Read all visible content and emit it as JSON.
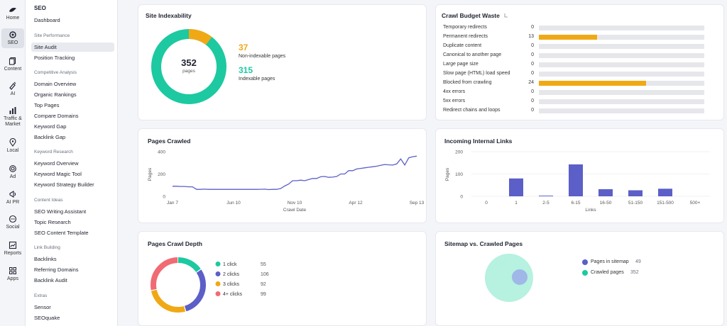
{
  "rail": [
    {
      "label": "Home",
      "icon": "home-icon"
    },
    {
      "label": "SEO",
      "icon": "seo-icon"
    },
    {
      "label": "Content",
      "icon": "content-icon"
    },
    {
      "label": "AI",
      "icon": "ai-icon"
    },
    {
      "label": "Traffic & Market",
      "icon": "traffic-icon"
    },
    {
      "label": "Local",
      "icon": "local-pin-icon"
    },
    {
      "label": "Ad",
      "icon": "ad-icon"
    },
    {
      "label": "AI PR",
      "icon": "ai-pr-icon"
    },
    {
      "label": "Social",
      "icon": "social-icon"
    },
    {
      "label": "Reports",
      "icon": "reports-icon"
    },
    {
      "label": "Apps",
      "icon": "apps-icon"
    }
  ],
  "sidebar": {
    "title": "SEO",
    "dashboard": "Dashboard",
    "sections": [
      {
        "heading": "Site Performance",
        "items": [
          "Site Audit",
          "Position Tracking"
        ]
      },
      {
        "heading": "Competitive Analysis",
        "items": [
          "Domain Overview",
          "Organic Rankings",
          "Top Pages",
          "Compare Domains",
          "Keyword Gap",
          "Backlink Gap"
        ]
      },
      {
        "heading": "Keyword Research",
        "items": [
          "Keyword Overview",
          "Keyword Magic Tool",
          "Keyword Strategy Builder"
        ]
      },
      {
        "heading": "Content Ideas",
        "items": [
          "SEO Writing Assistant",
          "Topic Research",
          "SEO Content Template"
        ]
      },
      {
        "heading": "Link Building",
        "items": [
          "Backlinks",
          "Referring Domains",
          "Backlink Audit"
        ]
      },
      {
        "heading": "Extras",
        "items": [
          "Sensor",
          "SEOquake"
        ]
      }
    ],
    "active_item": "Site Audit"
  },
  "indexability": {
    "title": "Site Indexability",
    "total": "352",
    "total_label": "pages",
    "non_indexable": "37",
    "non_indexable_label": "Non-indexable pages",
    "indexable": "315",
    "indexable_label": "Indexable pages",
    "colors": {
      "indexable": "#1dc9a0",
      "non_indexable": "#f0a915"
    }
  },
  "crawl_budget": {
    "title": "Crawl Budget Waste",
    "info_icon": "info-icon",
    "max": 37,
    "rows": [
      {
        "label": "Temporary redirects",
        "value": 0
      },
      {
        "label": "Permanent redirects",
        "value": 13
      },
      {
        "label": "Duplicate content",
        "value": 0
      },
      {
        "label": "Canonical to another page",
        "value": 0
      },
      {
        "label": "Large page size",
        "value": 0
      },
      {
        "label": "Slow page (HTML) load speed",
        "value": 0
      },
      {
        "label": "Blocked from crawling",
        "value": 24
      },
      {
        "label": "4xx errors",
        "value": 0
      },
      {
        "label": "5xx errors",
        "value": 0
      },
      {
        "label": "Redirect chains and loops",
        "value": 0
      }
    ],
    "bar_color": "#f0a915"
  },
  "pages_crawled": {
    "title": "Pages Crawled",
    "chart_data": {
      "type": "line",
      "ylabel": "Pages",
      "xlabel": "Crawl Date",
      "ylim": [
        0,
        400
      ],
      "yticks": [
        0,
        200,
        400
      ],
      "xtick_labels": [
        "Jan 7",
        "Jun 10",
        "Nov 10",
        "Apr 12",
        "Sep 13"
      ],
      "series": [
        {
          "values": [
            90,
            90,
            88,
            88,
            85,
            85,
            62,
            62,
            64,
            62,
            62,
            62,
            62,
            62,
            62,
            62,
            62,
            62,
            62,
            62,
            62,
            62,
            63,
            64,
            60,
            62,
            62,
            70,
            92,
            110,
            140,
            140,
            145,
            140,
            150,
            160,
            160,
            175,
            178,
            170,
            172,
            178,
            200,
            200,
            230,
            230,
            245,
            250,
            255,
            260,
            265,
            270,
            278,
            285,
            282,
            280,
            290,
            335,
            280,
            345,
            355,
            360
          ]
        }
      ],
      "color": "#5b5fc7"
    }
  },
  "incoming_links": {
    "title": "Incoming Internal Links",
    "chart_data": {
      "type": "bar",
      "ylabel": "Pages",
      "xlabel": "Links",
      "ylim": [
        0,
        200
      ],
      "yticks": [
        0,
        100,
        200
      ],
      "categories": [
        "0",
        "1",
        "2-5",
        "6-15",
        "16-50",
        "51-150",
        "151-500",
        "500+"
      ],
      "values": [
        0,
        80,
        3,
        143,
        32,
        27,
        34,
        0
      ],
      "color": "#5b5fc7"
    }
  },
  "crawl_depth": {
    "title": "Pages Crawl Depth",
    "chart_data": {
      "type": "pie",
      "categories": [
        "1 click",
        "2 clicks",
        "3 clicks",
        "4+ clicks"
      ],
      "values": [
        55,
        106,
        92,
        99
      ],
      "colors": [
        "#1dc9a0",
        "#5b5fc7",
        "#f0a915",
        "#f06b73"
      ]
    }
  },
  "sitemap": {
    "title": "Sitemap vs. Crawled Pages",
    "legend": [
      {
        "label": "Pages in sitemap",
        "value": "49",
        "color": "#5b5fc7"
      },
      {
        "label": "Crawled pages",
        "value": "352",
        "color": "#1dc9a0"
      }
    ]
  }
}
